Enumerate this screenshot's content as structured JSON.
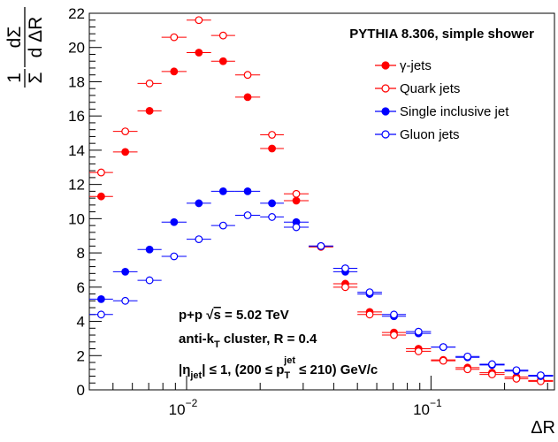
{
  "chart_data": {
    "type": "scatter",
    "title": "PYTHIA 8.306, simple shower",
    "xlabel": "ΔR",
    "xscale": "log",
    "xlim": [
      0.004,
      0.32
    ],
    "ylim": [
      0,
      22
    ],
    "xticks_major": [
      {
        "value": 0.01,
        "label": "10",
        "exp": "−2"
      },
      {
        "value": 0.1,
        "label": "10",
        "exp": "−1"
      }
    ],
    "yticks": [
      0,
      2,
      4,
      6,
      8,
      10,
      12,
      14,
      16,
      18,
      20,
      22
    ],
    "ylabel_parts": {
      "one": "1",
      "sigma_big": "Σ",
      "d_sigma": "dΣ",
      "d_r": "d ΔR"
    },
    "legend_position": "top-right",
    "annotations": {
      "line1_prefix": "p+p ",
      "line1_root": "√",
      "line1_s": "s",
      "line1_suffix": " = 5.02 TeV",
      "line2_prefix": "anti-k",
      "line2_sub": "T",
      "line2_suffix": " cluster, R = 0.4",
      "line3_prefix": "|η",
      "line3_sub": "jet",
      "line3_mid": "| ≤ 1, (200 ≤ p",
      "line3_sub2": "T",
      "line3_sup2": "jet",
      "line3_suffix": " ≤ 210) GeV/c"
    },
    "bin_edges": [
      0.004,
      0.005,
      0.0063,
      0.0079,
      0.01,
      0.0126,
      0.0158,
      0.02,
      0.025,
      0.0316,
      0.0398,
      0.05,
      0.063,
      0.079,
      0.1,
      0.126,
      0.158,
      0.2,
      0.25,
      0.316
    ],
    "series": [
      {
        "name": "γ-jets",
        "color": "#ff0000",
        "filled": true,
        "values": [
          11.3,
          13.9,
          16.3,
          18.6,
          19.7,
          19.2,
          17.1,
          14.1,
          11.05,
          8.4,
          6.2,
          4.55,
          3.35,
          2.4,
          1.75,
          1.3,
          1.0,
          0.75,
          0.55
        ]
      },
      {
        "name": "Quark jets",
        "color": "#ff0000",
        "filled": false,
        "values": [
          12.7,
          15.1,
          17.9,
          20.6,
          21.6,
          20.7,
          18.4,
          14.9,
          11.45,
          8.35,
          6.0,
          4.4,
          3.2,
          2.25,
          1.7,
          1.2,
          0.9,
          0.65,
          0.5
        ]
      },
      {
        "name": "Single inclusive jet",
        "color": "#0000ff",
        "filled": true,
        "values": [
          5.3,
          6.9,
          8.2,
          9.8,
          10.9,
          11.6,
          11.6,
          10.9,
          9.8,
          8.4,
          6.9,
          5.6,
          4.3,
          3.3,
          2.5,
          1.9,
          1.45,
          1.1,
          0.8
        ]
      },
      {
        "name": "Gluon jets",
        "color": "#0000ff",
        "filled": false,
        "values": [
          4.4,
          5.2,
          6.4,
          7.8,
          8.8,
          9.6,
          10.2,
          10.1,
          9.5,
          8.4,
          7.1,
          5.7,
          4.4,
          3.4,
          2.5,
          1.95,
          1.5,
          1.15,
          0.85
        ]
      }
    ]
  }
}
